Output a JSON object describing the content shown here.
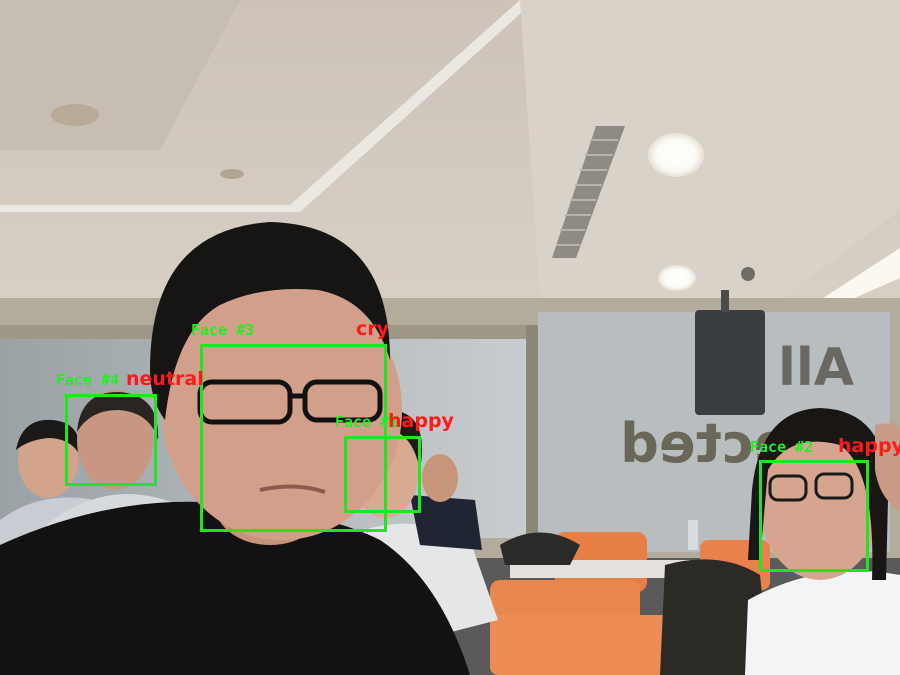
{
  "scene": {
    "wall_sign_letters": [
      "All",
      "ected"
    ]
  },
  "detections": [
    {
      "id": "face-3",
      "label": "Face #3",
      "emotion": "cry"
    },
    {
      "id": "face-4",
      "label": "Face #4",
      "emotion": "neutral"
    },
    {
      "id": "face-1",
      "label": "Face #1",
      "emotion": "happy"
    },
    {
      "id": "face-2",
      "label": "Face #2",
      "emotion": "happy"
    }
  ],
  "colors": {
    "box": "#1fe61f",
    "face_label": "#22ee22",
    "emotion_label": "#ff1a1a"
  }
}
